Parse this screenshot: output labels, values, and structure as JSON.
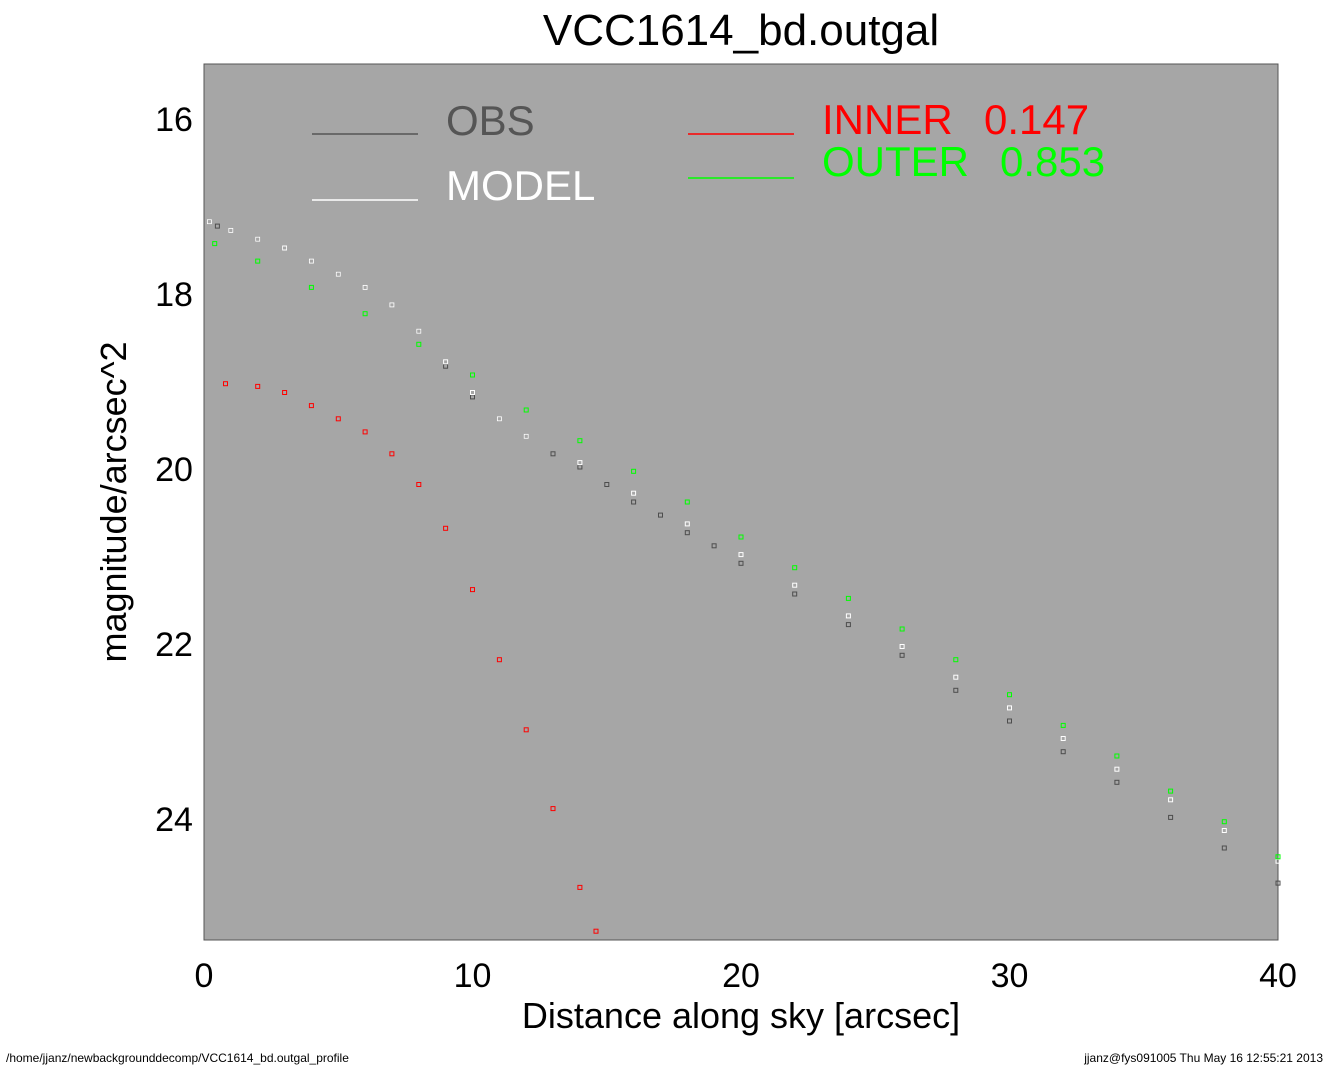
{
  "chart_data": {
    "type": "scatter",
    "title": "VCC1614_bd.outgal",
    "xlabel": "Distance along sky [arcsec]",
    "ylabel": "magnitude/arcsec^2",
    "xlim": [
      0,
      40
    ],
    "ylim": [
      25.4,
      15.4
    ],
    "y_inverted": true,
    "x_ticks": [
      "0",
      "10",
      "20",
      "30",
      "40"
    ],
    "y_ticks": [
      "16",
      "18",
      "20",
      "22",
      "24"
    ],
    "background_color": "#a6a6a6",
    "grid": false,
    "legend": [
      {
        "name": "OBS",
        "color": "#555555"
      },
      {
        "name": "MODEL",
        "color": "#ffffff"
      },
      {
        "name": "INNER",
        "value": "0.147",
        "color": "#ff0000"
      },
      {
        "name": "OUTER",
        "value": "0.853",
        "color": "#00ff00"
      }
    ],
    "series": [
      {
        "name": "OBS",
        "color": "#4d4d4d",
        "x": [
          0.2,
          0.5,
          1,
          2,
          3,
          4,
          5,
          6,
          7,
          8,
          9,
          10,
          11,
          12,
          13,
          14,
          15,
          16,
          17,
          18,
          19,
          20,
          22,
          24,
          26,
          28,
          30,
          32,
          34,
          36,
          38,
          40
        ],
        "y": [
          17.2,
          17.25,
          17.3,
          17.4,
          17.5,
          17.65,
          17.8,
          17.95,
          18.15,
          18.45,
          18.85,
          19.2,
          19.45,
          19.65,
          19.85,
          20.0,
          20.2,
          20.4,
          20.55,
          20.75,
          20.9,
          21.1,
          21.45,
          21.8,
          22.15,
          22.55,
          22.9,
          23.25,
          23.6,
          24.0,
          24.35,
          24.75
        ]
      },
      {
        "name": "MODEL",
        "color": "#ffffff",
        "x": [
          0.2,
          1,
          2,
          3,
          4,
          5,
          6,
          7,
          8,
          9,
          10,
          11,
          12,
          14,
          16,
          18,
          20,
          22,
          24,
          26,
          28,
          30,
          32,
          34,
          36,
          38,
          40
        ],
        "y": [
          17.2,
          17.3,
          17.4,
          17.5,
          17.65,
          17.8,
          17.95,
          18.15,
          18.45,
          18.8,
          19.15,
          19.45,
          19.65,
          19.95,
          20.3,
          20.65,
          21.0,
          21.35,
          21.7,
          22.05,
          22.4,
          22.75,
          23.1,
          23.45,
          23.8,
          24.15,
          24.5
        ]
      },
      {
        "name": "INNER",
        "color": "#ff0000",
        "x": [
          0.8,
          2,
          3,
          4,
          5,
          6,
          7,
          8,
          9,
          10,
          11,
          12,
          13,
          14,
          14.6
        ],
        "y": [
          19.05,
          19.08,
          19.15,
          19.3,
          19.45,
          19.6,
          19.85,
          20.2,
          20.7,
          21.4,
          22.2,
          23.0,
          23.9,
          24.8,
          25.3
        ]
      },
      {
        "name": "OUTER",
        "color": "#00ff00",
        "x": [
          0.4,
          2,
          4,
          6,
          8,
          10,
          12,
          14,
          16,
          18,
          20,
          22,
          24,
          26,
          28,
          30,
          32,
          34,
          36,
          38,
          40
        ],
        "y": [
          17.45,
          17.65,
          17.95,
          18.25,
          18.6,
          18.95,
          19.35,
          19.7,
          20.05,
          20.4,
          20.8,
          21.15,
          21.5,
          21.85,
          22.2,
          22.6,
          22.95,
          23.3,
          23.7,
          24.05,
          24.45
        ]
      }
    ]
  },
  "footer": {
    "left": "/home/jjanz/newbackgrounddecomp/VCC1614_bd.outgal_profile",
    "right": "jjanz@fys091005  Thu May 16 12:55:21 2013"
  }
}
